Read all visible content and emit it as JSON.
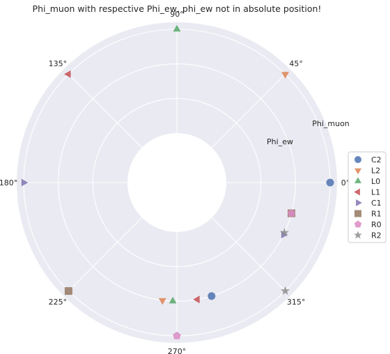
{
  "chart_data": {
    "type": "scatter",
    "projection": "polar",
    "title": "Phi_muon with respective Phi_ew, phi_ew not in absolute position!",
    "angle_ticks_deg": [
      0,
      45,
      90,
      135,
      180,
      225,
      270,
      315
    ],
    "angle_tick_labels": [
      "0°",
      "45°",
      "90°",
      "135°",
      "180°",
      "225°",
      "270°",
      "315°"
    ],
    "rings": [
      {
        "name": "Phi_muon",
        "radius": 3
      },
      {
        "name": "Phi_ew",
        "radius": 2
      }
    ],
    "rlim": [
      0,
      3
    ],
    "grid": true,
    "legend_position": "right",
    "colors": {
      "C2": "#4c72b0",
      "L2": "#dd8452",
      "L0": "#55a868",
      "L1": "#c44e52",
      "C1": "#8172b3",
      "R1": "#937860",
      "R0": "#da8bc3",
      "R2": "#8c8c8c",
      "background": "#eaeaf2",
      "grid": "#ffffff"
    },
    "series": [
      {
        "name": "C2",
        "marker": "circle",
        "points": [
          {
            "theta": 0,
            "r": 3
          },
          {
            "theta": 287,
            "r": 2
          }
        ]
      },
      {
        "name": "L2",
        "marker": "triangle-down",
        "points": [
          {
            "theta": 45,
            "r": 3
          },
          {
            "theta": 263,
            "r": 2
          }
        ]
      },
      {
        "name": "L0",
        "marker": "triangle-up",
        "points": [
          {
            "theta": 90,
            "r": 3
          },
          {
            "theta": 268,
            "r": 2
          }
        ]
      },
      {
        "name": "L1",
        "marker": "triangle-left",
        "points": [
          {
            "theta": 135,
            "r": 3
          },
          {
            "theta": 280,
            "r": 2
          }
        ]
      },
      {
        "name": "C1",
        "marker": "triangle-right",
        "points": [
          {
            "theta": 180,
            "r": 3
          },
          {
            "theta": 334,
            "r": 2
          }
        ]
      },
      {
        "name": "R1",
        "marker": "square",
        "points": [
          {
            "theta": 225,
            "r": 3
          },
          {
            "theta": 345,
            "r": 2
          }
        ]
      },
      {
        "name": "R0",
        "marker": "pentagon",
        "points": [
          {
            "theta": 270,
            "r": 3
          },
          {
            "theta": 345,
            "r": 2
          }
        ]
      },
      {
        "name": "R2",
        "marker": "star",
        "points": [
          {
            "theta": 315,
            "r": 3
          },
          {
            "theta": 335,
            "r": 2
          }
        ]
      }
    ]
  }
}
